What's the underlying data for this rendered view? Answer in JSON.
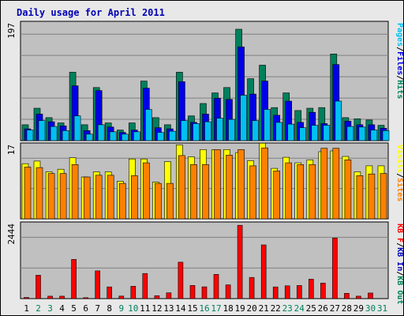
{
  "chart_data": {
    "type": "bar",
    "title": "Daily usage for April 2011",
    "categories": [
      "1",
      "2",
      "3",
      "4",
      "5",
      "6",
      "7",
      "8",
      "9",
      "10",
      "11",
      "12",
      "13",
      "14",
      "15",
      "16",
      "17",
      "18",
      "19",
      "20",
      "21",
      "22",
      "23",
      "24",
      "25",
      "26",
      "27",
      "28",
      "29",
      "30",
      "31"
    ],
    "weekend_days": [
      "2",
      "3",
      "9",
      "10",
      "16",
      "17",
      "23",
      "24",
      "30",
      "31"
    ],
    "panels": [
      {
        "id": "top",
        "max_label": "197",
        "ymax": 197,
        "series": [
          {
            "name": "Hits",
            "color": "#00805c",
            "values": [
              27,
              55,
              39,
              30,
              116,
              27,
              90,
              30,
              18,
              30,
              101,
              39,
              27,
              116,
              42,
              63,
              81,
              90,
              189,
              105,
              128,
              56,
              81,
              51,
              55,
              56,
              147,
              39,
              37,
              35,
              26
            ]
          },
          {
            "name": "Files",
            "color": "#0000e8",
            "values": [
              20,
              45,
              32,
              25,
              93,
              17,
              85,
              23,
              14,
              18,
              89,
              22,
              20,
              100,
              31,
              45,
              72,
              70,
              159,
              79,
              101,
              43,
              67,
              31,
              48,
              29,
              129,
              33,
              27,
              27,
              21
            ]
          },
          {
            "name": "Pages",
            "color": "#00c0f0",
            "values": [
              18,
              34,
              24,
              17,
              42,
              11,
              27,
              15,
              11,
              15,
              53,
              14,
              16,
              34,
              29,
              32,
              38,
              36,
              77,
              34,
              53,
              31,
              28,
              22,
              26,
              26,
              67,
              24,
              23,
              18,
              17
            ]
          }
        ],
        "legend": [
          "Pages",
          "Files",
          "Hits"
        ],
        "legend_colors": [
          "#00c0f0",
          "#0000e8",
          "#00805c"
        ]
      },
      {
        "id": "middle",
        "max_label": "17",
        "ymax": 17,
        "series": [
          {
            "name": "Visits",
            "color": "#ffff00",
            "values": [
              12.9,
              13.5,
              11,
              11.6,
              14.3,
              9.8,
              11,
              11,
              8.8,
              14,
              14,
              8.6,
              13.4,
              17.3,
              14.5,
              16.2,
              16.2,
              16.2,
              15.5,
              13.6,
              17.7,
              11.8,
              14.4,
              13.1,
              13.8,
              15.7,
              15.9,
              14.6,
              11,
              12.4,
              12.4
            ]
          },
          {
            "name": "Sites",
            "color": "#ff8000",
            "values": [
              12.1,
              12,
              10.6,
              10.6,
              12.7,
              9.8,
              10.2,
              10.2,
              8.3,
              10.1,
              13.1,
              8.3,
              8.3,
              14.8,
              12.7,
              12.7,
              16.2,
              14.9,
              16.2,
              12.4,
              16.6,
              11.2,
              13.1,
              12.7,
              12.7,
              16.5,
              16.5,
              13.8,
              10.1,
              10.5,
              10.6
            ]
          }
        ],
        "legend": [
          "Visits",
          "Sites"
        ],
        "legend_colors": [
          "#ffff00",
          "#ff8000"
        ]
      },
      {
        "id": "bottom",
        "max_label": "2444",
        "ymax": 2444,
        "series": [
          {
            "name": "KB F",
            "color": "#ff0000",
            "values": [
              39,
              778,
              81,
              81,
              1304,
              32,
              922,
              389,
              83,
              411,
              836,
              98,
              191,
              1211,
              438,
              392,
              807,
              457,
              2439,
              703,
              1786,
              389,
              425,
              436,
              647,
              515,
              2014,
              176,
              81,
              186,
              0
            ]
          }
        ],
        "legend": [
          "KB F",
          "KB In",
          "KB Out"
        ],
        "legend_colors": [
          "#ff0000",
          "#0000b4",
          "#00805c"
        ]
      }
    ],
    "colors": {
      "weekday_label": "#000000",
      "weekend_label": "#00805c",
      "panel_bg": "#c0c0c0",
      "frame_bg": "#e8e8e8",
      "title": "#0000b4"
    }
  }
}
